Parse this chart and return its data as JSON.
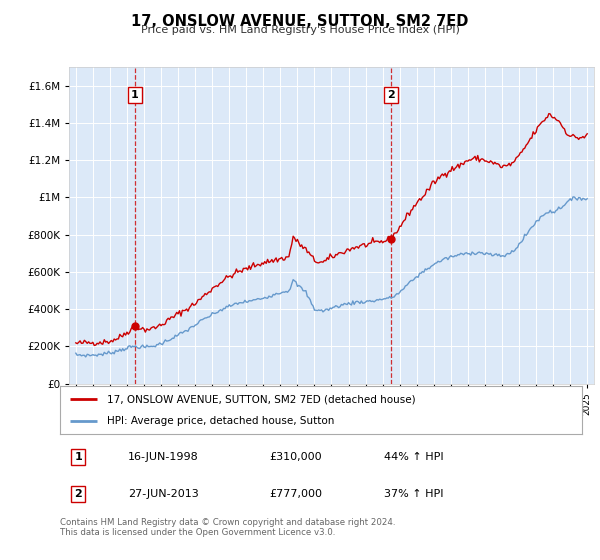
{
  "title": "17, ONSLOW AVENUE, SUTTON, SM2 7ED",
  "subtitle": "Price paid vs. HM Land Registry's House Price Index (HPI)",
  "plot_bg_color": "#dce9f8",
  "ylim": [
    0,
    1700000
  ],
  "yticks": [
    0,
    200000,
    400000,
    600000,
    800000,
    1000000,
    1200000,
    1400000,
    1600000
  ],
  "ytick_labels": [
    "£0",
    "£200K",
    "£400K",
    "£600K",
    "£800K",
    "£1M",
    "£1.2M",
    "£1.4M",
    "£1.6M"
  ],
  "xlim_start": 1994.6,
  "xlim_end": 2025.4,
  "xtick_years": [
    1995,
    1996,
    1997,
    1998,
    1999,
    2000,
    2001,
    2002,
    2003,
    2004,
    2005,
    2006,
    2007,
    2008,
    2009,
    2010,
    2011,
    2012,
    2013,
    2014,
    2015,
    2016,
    2017,
    2018,
    2019,
    2020,
    2021,
    2022,
    2023,
    2024,
    2025
  ],
  "red_line_color": "#cc0000",
  "blue_line_color": "#6699cc",
  "marker1_year": 1998.46,
  "marker1_value": 310000,
  "marker2_year": 2013.49,
  "marker2_value": 777000,
  "legend_label_red": "17, ONSLOW AVENUE, SUTTON, SM2 7ED (detached house)",
  "legend_label_blue": "HPI: Average price, detached house, Sutton",
  "table_row1": [
    "1",
    "16-JUN-1998",
    "£310,000",
    "44% ↑ HPI"
  ],
  "table_row2": [
    "2",
    "27-JUN-2013",
    "£777,000",
    "37% ↑ HPI"
  ],
  "footnote": "Contains HM Land Registry data © Crown copyright and database right 2024.\nThis data is licensed under the Open Government Licence v3.0.",
  "red_x": [
    1995.0,
    1995.08,
    1995.17,
    1995.25,
    1995.33,
    1995.42,
    1995.5,
    1995.58,
    1995.67,
    1995.75,
    1995.83,
    1995.92,
    1996.0,
    1996.08,
    1996.17,
    1996.25,
    1996.33,
    1996.42,
    1996.5,
    1996.58,
    1996.67,
    1996.75,
    1996.83,
    1996.92,
    1997.0,
    1997.08,
    1997.17,
    1997.25,
    1997.33,
    1997.42,
    1997.5,
    1997.58,
    1997.67,
    1997.75,
    1997.83,
    1997.92,
    1998.0,
    1998.08,
    1998.17,
    1998.25,
    1998.33,
    1998.46,
    1998.5,
    1998.58,
    1998.67,
    1998.75,
    1998.83,
    1998.92,
    1999.0,
    1999.08,
    1999.17,
    1999.25,
    1999.33,
    1999.42,
    1999.5,
    1999.58,
    1999.67,
    1999.75,
    1999.83,
    1999.92,
    2000.0,
    2000.08,
    2000.17,
    2000.25,
    2000.33,
    2000.42,
    2000.5,
    2000.58,
    2000.67,
    2000.75,
    2000.83,
    2000.92,
    2001.0,
    2001.08,
    2001.17,
    2001.25,
    2001.33,
    2001.42,
    2001.5,
    2001.58,
    2001.67,
    2001.75,
    2001.83,
    2001.92,
    2002.0,
    2002.08,
    2002.17,
    2002.25,
    2002.33,
    2002.42,
    2002.5,
    2002.58,
    2002.67,
    2002.75,
    2002.83,
    2002.92,
    2003.0,
    2003.08,
    2003.17,
    2003.25,
    2003.33,
    2003.42,
    2003.5,
    2003.58,
    2003.67,
    2003.75,
    2003.83,
    2003.92,
    2004.0,
    2004.08,
    2004.17,
    2004.25,
    2004.33,
    2004.42,
    2004.5,
    2004.58,
    2004.67,
    2004.75,
    2004.83,
    2004.92,
    2005.0,
    2005.08,
    2005.17,
    2005.25,
    2005.33,
    2005.42,
    2005.5,
    2005.58,
    2005.67,
    2005.75,
    2005.83,
    2005.92,
    2006.0,
    2006.08,
    2006.17,
    2006.25,
    2006.33,
    2006.42,
    2006.5,
    2006.58,
    2006.67,
    2006.75,
    2006.83,
    2006.92,
    2007.0,
    2007.08,
    2007.17,
    2007.25,
    2007.33,
    2007.42,
    2007.5,
    2007.58,
    2007.67,
    2007.75,
    2007.83,
    2007.92,
    2008.0,
    2008.08,
    2008.17,
    2008.25,
    2008.33,
    2008.42,
    2008.5,
    2008.58,
    2008.67,
    2008.75,
    2008.83,
    2008.92,
    2009.0,
    2009.08,
    2009.17,
    2009.25,
    2009.33,
    2009.42,
    2009.5,
    2009.58,
    2009.67,
    2009.75,
    2009.83,
    2009.92,
    2010.0,
    2010.08,
    2010.17,
    2010.25,
    2010.33,
    2010.42,
    2010.5,
    2010.58,
    2010.67,
    2010.75,
    2010.83,
    2010.92,
    2011.0,
    2011.08,
    2011.17,
    2011.25,
    2011.33,
    2011.42,
    2011.5,
    2011.58,
    2011.67,
    2011.75,
    2011.83,
    2011.92,
    2012.0,
    2012.08,
    2012.17,
    2012.25,
    2012.33,
    2012.42,
    2012.5,
    2012.58,
    2012.67,
    2012.75,
    2012.83,
    2012.92,
    2013.0,
    2013.08,
    2013.17,
    2013.25,
    2013.33,
    2013.42,
    2013.49,
    2013.5,
    2013.58,
    2013.67,
    2013.75,
    2013.83,
    2013.92,
    2014.0,
    2014.08,
    2014.17,
    2014.25,
    2014.33,
    2014.42,
    2014.5,
    2014.58,
    2014.67,
    2014.75,
    2014.83,
    2014.92,
    2015.0,
    2015.08,
    2015.17,
    2015.25,
    2015.33,
    2015.42,
    2015.5,
    2015.58,
    2015.67,
    2015.75,
    2015.83,
    2015.92,
    2016.0,
    2016.08,
    2016.17,
    2016.25,
    2016.33,
    2016.42,
    2016.5,
    2016.58,
    2016.67,
    2016.75,
    2016.83,
    2016.92,
    2017.0,
    2017.08,
    2017.17,
    2017.25,
    2017.33,
    2017.42,
    2017.5,
    2017.58,
    2017.67,
    2017.75,
    2017.83,
    2017.92,
    2018.0,
    2018.08,
    2018.17,
    2018.25,
    2018.33,
    2018.42,
    2018.5,
    2018.58,
    2018.67,
    2018.75,
    2018.83,
    2018.92,
    2019.0,
    2019.08,
    2019.17,
    2019.25,
    2019.33,
    2019.42,
    2019.5,
    2019.58,
    2019.67,
    2019.75,
    2019.83,
    2019.92,
    2020.0,
    2020.08,
    2020.17,
    2020.25,
    2020.33,
    2020.42,
    2020.5,
    2020.58,
    2020.67,
    2020.75,
    2020.83,
    2020.92,
    2021.0,
    2021.08,
    2021.17,
    2021.25,
    2021.33,
    2021.42,
    2021.5,
    2021.58,
    2021.67,
    2021.75,
    2021.83,
    2021.92,
    2022.0,
    2022.08,
    2022.17,
    2022.25,
    2022.33,
    2022.42,
    2022.5,
    2022.58,
    2022.67,
    2022.75,
    2022.83,
    2022.92,
    2023.0,
    2023.08,
    2023.17,
    2023.25,
    2023.33,
    2023.42,
    2023.5,
    2023.58,
    2023.67,
    2023.75,
    2023.83,
    2023.92,
    2024.0,
    2024.08,
    2024.17,
    2024.25,
    2024.33,
    2024.42,
    2024.5,
    2024.58,
    2024.67,
    2024.75,
    2024.83,
    2024.92,
    2025.0
  ],
  "blue_x": [
    1995.0,
    1995.08,
    1995.17,
    1995.25,
    1995.33,
    1995.42,
    1995.5,
    1995.58,
    1995.67,
    1995.75,
    1995.83,
    1995.92,
    1996.0,
    1996.08,
    1996.17,
    1996.25,
    1996.33,
    1996.42,
    1996.5,
    1996.58,
    1996.67,
    1996.75,
    1996.83,
    1996.92,
    1997.0,
    1997.08,
    1997.17,
    1997.25,
    1997.33,
    1997.42,
    1997.5,
    1997.58,
    1997.67,
    1997.75,
    1997.83,
    1997.92,
    1998.0,
    1998.08,
    1998.17,
    1998.25,
    1998.33,
    1998.42,
    1998.5,
    1998.58,
    1998.67,
    1998.75,
    1998.83,
    1998.92,
    1999.0,
    1999.08,
    1999.17,
    1999.25,
    1999.33,
    1999.42,
    1999.5,
    1999.58,
    1999.67,
    1999.75,
    1999.83,
    1999.92,
    2000.0,
    2000.08,
    2000.17,
    2000.25,
    2000.33,
    2000.42,
    2000.5,
    2000.58,
    2000.67,
    2000.75,
    2000.83,
    2000.92,
    2001.0,
    2001.08,
    2001.17,
    2001.25,
    2001.33,
    2001.42,
    2001.5,
    2001.58,
    2001.67,
    2001.75,
    2001.83,
    2001.92,
    2002.0,
    2002.08,
    2002.17,
    2002.25,
    2002.33,
    2002.42,
    2002.5,
    2002.58,
    2002.67,
    2002.75,
    2002.83,
    2002.92,
    2003.0,
    2003.08,
    2003.17,
    2003.25,
    2003.33,
    2003.42,
    2003.5,
    2003.58,
    2003.67,
    2003.75,
    2003.83,
    2003.92,
    2004.0,
    2004.08,
    2004.17,
    2004.25,
    2004.33,
    2004.42,
    2004.5,
    2004.58,
    2004.67,
    2004.75,
    2004.83,
    2004.92,
    2005.0,
    2005.08,
    2005.17,
    2005.25,
    2005.33,
    2005.42,
    2005.5,
    2005.58,
    2005.67,
    2005.75,
    2005.83,
    2005.92,
    2006.0,
    2006.08,
    2006.17,
    2006.25,
    2006.33,
    2006.42,
    2006.5,
    2006.58,
    2006.67,
    2006.75,
    2006.83,
    2006.92,
    2007.0,
    2007.08,
    2007.17,
    2007.25,
    2007.33,
    2007.42,
    2007.5,
    2007.58,
    2007.67,
    2007.75,
    2007.83,
    2007.92,
    2008.0,
    2008.08,
    2008.17,
    2008.25,
    2008.33,
    2008.42,
    2008.5,
    2008.58,
    2008.67,
    2008.75,
    2008.83,
    2008.92,
    2009.0,
    2009.08,
    2009.17,
    2009.25,
    2009.33,
    2009.42,
    2009.5,
    2009.58,
    2009.67,
    2009.75,
    2009.83,
    2009.92,
    2010.0,
    2010.08,
    2010.17,
    2010.25,
    2010.33,
    2010.42,
    2010.5,
    2010.58,
    2010.67,
    2010.75,
    2010.83,
    2010.92,
    2011.0,
    2011.08,
    2011.17,
    2011.25,
    2011.33,
    2011.42,
    2011.5,
    2011.58,
    2011.67,
    2011.75,
    2011.83,
    2011.92,
    2012.0,
    2012.08,
    2012.17,
    2012.25,
    2012.33,
    2012.42,
    2012.5,
    2012.58,
    2012.67,
    2012.75,
    2012.83,
    2012.92,
    2013.0,
    2013.08,
    2013.17,
    2013.25,
    2013.33,
    2013.42,
    2013.5,
    2013.58,
    2013.67,
    2013.75,
    2013.83,
    2013.92,
    2014.0,
    2014.08,
    2014.17,
    2014.25,
    2014.33,
    2014.42,
    2014.5,
    2014.58,
    2014.67,
    2014.75,
    2014.83,
    2014.92,
    2015.0,
    2015.08,
    2015.17,
    2015.25,
    2015.33,
    2015.42,
    2015.5,
    2015.58,
    2015.67,
    2015.75,
    2015.83,
    2015.92,
    2016.0,
    2016.08,
    2016.17,
    2016.25,
    2016.33,
    2016.42,
    2016.5,
    2016.58,
    2016.67,
    2016.75,
    2016.83,
    2016.92,
    2017.0,
    2017.08,
    2017.17,
    2017.25,
    2017.33,
    2017.42,
    2017.5,
    2017.58,
    2017.67,
    2017.75,
    2017.83,
    2017.92,
    2018.0,
    2018.08,
    2018.17,
    2018.25,
    2018.33,
    2018.42,
    2018.5,
    2018.58,
    2018.67,
    2018.75,
    2018.83,
    2018.92,
    2019.0,
    2019.08,
    2019.17,
    2019.25,
    2019.33,
    2019.42,
    2019.5,
    2019.58,
    2019.67,
    2019.75,
    2019.83,
    2019.92,
    2020.0,
    2020.08,
    2020.17,
    2020.25,
    2020.33,
    2020.42,
    2020.5,
    2020.58,
    2020.67,
    2020.75,
    2020.83,
    2020.92,
    2021.0,
    2021.08,
    2021.17,
    2021.25,
    2021.33,
    2021.42,
    2021.5,
    2021.58,
    2021.67,
    2021.75,
    2021.83,
    2021.92,
    2022.0,
    2022.08,
    2022.17,
    2022.25,
    2022.33,
    2022.42,
    2022.5,
    2022.58,
    2022.67,
    2022.75,
    2022.83,
    2022.92,
    2023.0,
    2023.08,
    2023.17,
    2023.25,
    2023.33,
    2023.42,
    2023.5,
    2023.58,
    2023.67,
    2023.75,
    2023.83,
    2023.92,
    2024.0,
    2024.08,
    2024.17,
    2024.25,
    2024.33,
    2024.42,
    2024.5,
    2024.58,
    2024.67,
    2024.75,
    2024.83,
    2024.92,
    2025.0
  ]
}
